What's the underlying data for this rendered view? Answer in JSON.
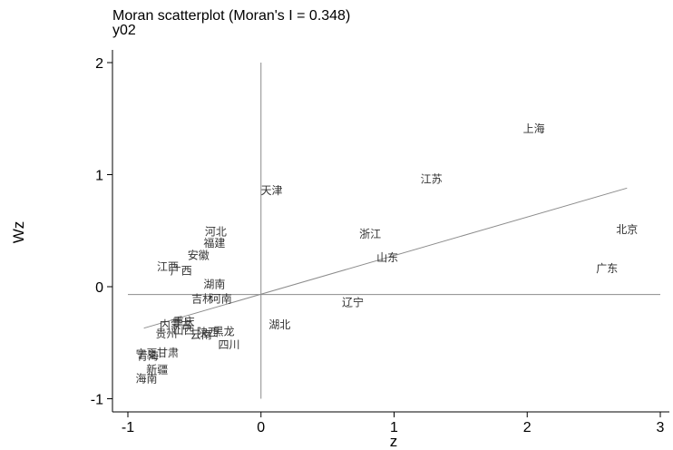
{
  "chart_data": {
    "type": "scatter",
    "title": "Moran scatterplot (Moran's I = 0.348)",
    "subtitle": "y02",
    "xlabel": "z",
    "ylabel": "Wz",
    "xlim": [
      -1.1,
      3.0
    ],
    "ylim": [
      -1.1,
      2.1
    ],
    "xticks": [
      -1,
      0,
      1,
      2,
      3
    ],
    "yticks": [
      -1,
      0,
      1,
      2
    ],
    "grid": false,
    "reference_lines": {
      "x": 0,
      "y": -0.07
    },
    "fit_line": {
      "x": [
        -0.88,
        2.75
      ],
      "y": [
        -0.37,
        0.88
      ]
    },
    "points": [
      {
        "label": "上海",
        "x": 2.05,
        "y": 1.41
      },
      {
        "label": "江苏",
        "x": 1.28,
        "y": 0.96
      },
      {
        "label": "天津",
        "x": 0.08,
        "y": 0.86
      },
      {
        "label": "北京",
        "x": 2.75,
        "y": 0.51
      },
      {
        "label": "浙江",
        "x": 0.82,
        "y": 0.47
      },
      {
        "label": "广东",
        "x": 2.6,
        "y": 0.16
      },
      {
        "label": "山东",
        "x": 0.95,
        "y": 0.26
      },
      {
        "label": "辽宁",
        "x": 0.69,
        "y": -0.14
      },
      {
        "label": "湖北",
        "x": 0.14,
        "y": -0.34
      },
      {
        "label": "河北",
        "x": -0.34,
        "y": 0.49
      },
      {
        "label": "福建",
        "x": -0.35,
        "y": 0.39
      },
      {
        "label": "安徽",
        "x": -0.47,
        "y": 0.28
      },
      {
        "label": "江西",
        "x": -0.7,
        "y": 0.18
      },
      {
        "label": "广西",
        "x": -0.6,
        "y": 0.14
      },
      {
        "label": "湖南",
        "x": -0.35,
        "y": 0.02
      },
      {
        "label": "吉林",
        "x": -0.44,
        "y": -0.11
      },
      {
        "label": "河南",
        "x": -0.3,
        "y": -0.11
      },
      {
        "label": "重庆",
        "x": -0.58,
        "y": -0.31
      },
      {
        "label": "内蒙古",
        "x": -0.64,
        "y": -0.34
      },
      {
        "label": "山西",
        "x": -0.58,
        "y": -0.39
      },
      {
        "label": "贵州",
        "x": -0.71,
        "y": -0.42
      },
      {
        "label": "云南",
        "x": -0.45,
        "y": -0.43
      },
      {
        "label": "陕西",
        "x": -0.4,
        "y": -0.41
      },
      {
        "label": "黑龙",
        "x": -0.28,
        "y": -0.4
      },
      {
        "label": "四川",
        "x": -0.24,
        "y": -0.52
      },
      {
        "label": "宁夏",
        "x": -0.86,
        "y": -0.6
      },
      {
        "label": "甘肃",
        "x": -0.7,
        "y": -0.59
      },
      {
        "label": "青海",
        "x": -0.85,
        "y": -0.62
      },
      {
        "label": "新疆",
        "x": -0.78,
        "y": -0.74
      },
      {
        "label": "海南",
        "x": -0.86,
        "y": -0.82
      }
    ],
    "colors": {
      "axis": "#000000",
      "reference": "#8c8c8c",
      "fit": "#8c8c8c",
      "label": "#333333"
    }
  }
}
